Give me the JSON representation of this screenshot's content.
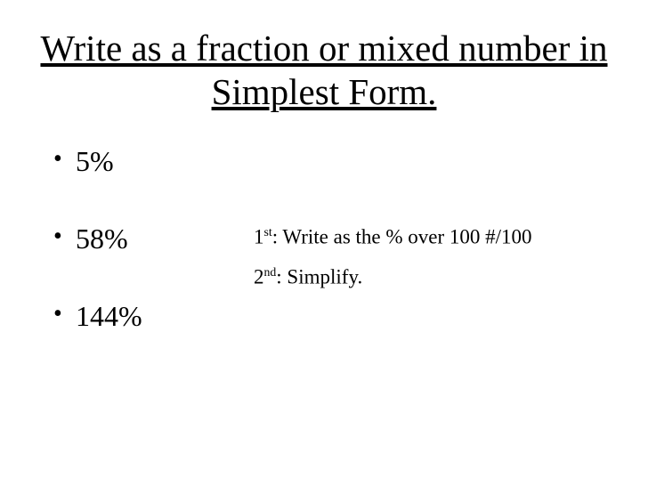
{
  "slide": {
    "title": "Write as a fraction or mixed number in Simplest Form.",
    "bullets": [
      "5%",
      "58%",
      "144%"
    ],
    "hints": {
      "line1_prefix": "1",
      "line1_super": "st",
      "line1_text": ": Write as the % over 100 #/100",
      "line2_prefix": "2",
      "line2_super": "nd",
      "line2_text": ": Simplify."
    }
  },
  "style": {
    "background_color": "#ffffff",
    "text_color": "#000000",
    "font_family": "Times New Roman",
    "title_fontsize": 41,
    "bullet_fontsize": 32,
    "hint_fontsize": 23,
    "title_underline": true
  }
}
